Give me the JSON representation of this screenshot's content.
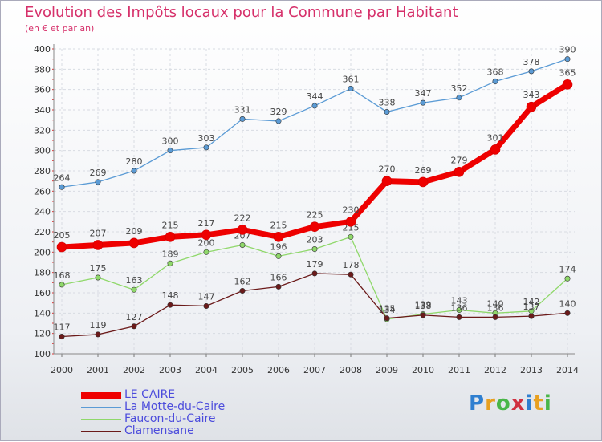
{
  "header": {
    "title": "Evolution des Impôts locaux pour la Commune par Habitant",
    "subtitle": "(en € et par an)"
  },
  "brand": {
    "text": "Proxiti",
    "letters": [
      "P",
      "r",
      "o",
      "x",
      "i",
      "t",
      "i"
    ],
    "colors": [
      "#2f7fd0",
      "#e8a020",
      "#49b648",
      "#d03040",
      "#2f7fd0",
      "#e8a020",
      "#49b648"
    ]
  },
  "chart_data": {
    "type": "line",
    "title": "Evolution des Impôts locaux pour la Commune par Habitant",
    "subtitle": "(en € et par an)",
    "x": [
      "2000",
      "2001",
      "2002",
      "2003",
      "2004",
      "2005",
      "2006",
      "2007",
      "2008",
      "2009",
      "2010",
      "2011",
      "2012",
      "2013",
      "2014"
    ],
    "ylim": [
      100,
      400
    ],
    "yticks": [
      100,
      120,
      140,
      160,
      180,
      200,
      220,
      240,
      260,
      280,
      300,
      320,
      340,
      360,
      380,
      400
    ],
    "grid": true,
    "legend_position": "bottom-left",
    "series": [
      {
        "name": "La Motte-du-Caire",
        "color": "#5b9bd5",
        "values": [
          264,
          269,
          280,
          300,
          303,
          331,
          329,
          344,
          361,
          338,
          347,
          352,
          368,
          378,
          390
        ]
      },
      {
        "name": "Faucon-du-Caire",
        "color": "#8fd86a",
        "values": [
          168,
          175,
          163,
          189,
          200,
          207,
          196,
          203,
          215,
          134,
          139,
          143,
          140,
          142,
          174
        ]
      },
      {
        "name": "Clamensane",
        "color": "#6b1a1a",
        "values": [
          117,
          119,
          127,
          148,
          147,
          162,
          166,
          179,
          178,
          135,
          138,
          136,
          136,
          137,
          140
        ]
      },
      {
        "name": "LE CAIRE",
        "color": "#ee0000",
        "values": [
          205,
          207,
          209,
          215,
          217,
          222,
          215,
          225,
          230,
          270,
          269,
          279,
          301,
          343,
          365
        ]
      }
    ],
    "legend_order": [
      "LE CAIRE",
      "La Motte-du-Caire",
      "Faucon-du-Caire",
      "Clamensane"
    ]
  }
}
